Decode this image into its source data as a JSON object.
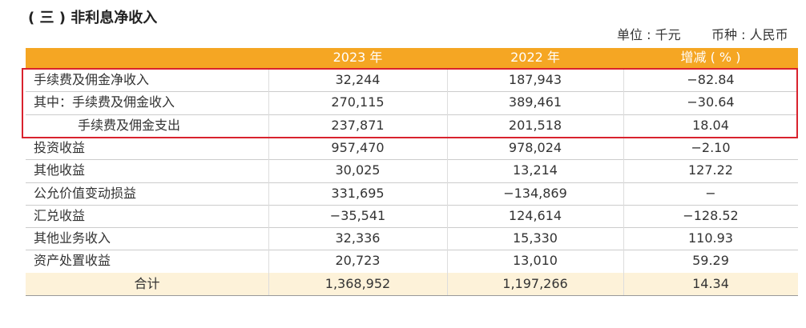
{
  "header": {
    "title": "( 三 ) 非利息净收入",
    "unit": "单位 : 千元",
    "currency": "币种 : 人民币"
  },
  "table": {
    "columns": [
      "",
      "2023 年",
      "2022 年",
      "增减 ( % )"
    ],
    "rows": [
      [
        "手续费及佣金净收入",
        "32,244",
        "187,943",
        "−82.84"
      ],
      [
        "其中：手续费及佣金收入",
        "270,115",
        "389,461",
        "−30.64"
      ],
      [
        "手续费及佣金支出",
        "237,871",
        "201,518",
        "18.04"
      ],
      [
        "投资收益",
        "957,470",
        "978,024",
        "−2.10"
      ],
      [
        "其他收益",
        "30,025",
        "13,214",
        "127.22"
      ],
      [
        "公允价值变动损益",
        "331,695",
        "−134,869",
        "−"
      ],
      [
        "汇兑收益",
        "−35,541",
        "124,614",
        "−128.52"
      ],
      [
        "其他业务收入",
        "32,336",
        "15,330",
        "110.93"
      ],
      [
        "资产处置收益",
        "20,723",
        "13,010",
        "59.29"
      ]
    ],
    "total": [
      "合计",
      "1,368,952",
      "1,197,266",
      "14.34"
    ]
  }
}
